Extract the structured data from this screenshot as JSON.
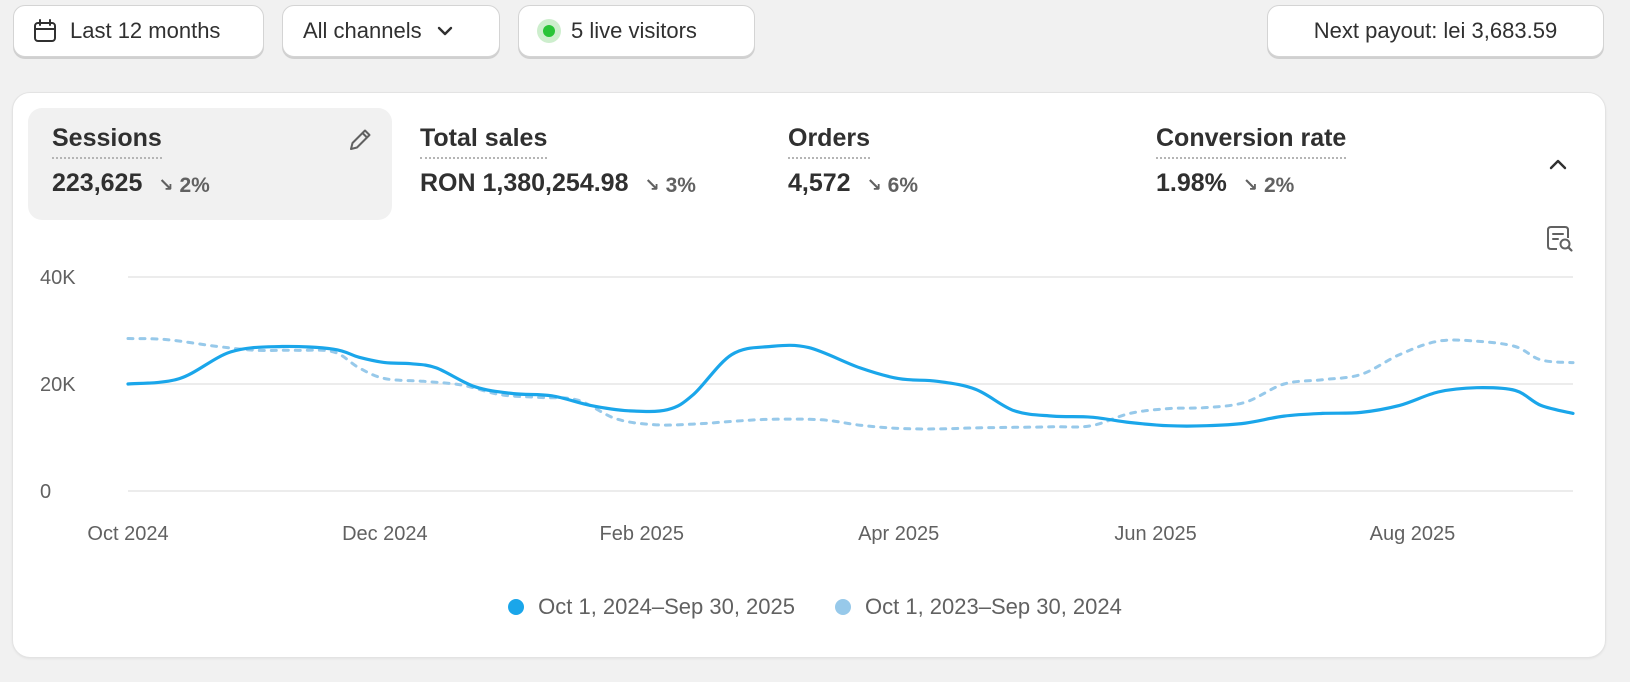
{
  "filters": {
    "date_range": "Last 12 months",
    "channels": "All channels",
    "live_visitors": "5 live visitors",
    "payout": "Next payout: lei 3,683.59"
  },
  "metrics": [
    {
      "title": "Sessions",
      "value": "223,625",
      "delta": "2%",
      "selected": true
    },
    {
      "title": "Total sales",
      "value": "RON 1,380,254.98",
      "delta": "3%"
    },
    {
      "title": "Orders",
      "value": "4,572",
      "delta": "6%"
    },
    {
      "title": "Conversion rate",
      "value": "1.98%",
      "delta": "2%"
    }
  ],
  "icons": {
    "calendar": "calendar-icon",
    "chevron": "chevron-down-icon",
    "edit": "pencil-icon",
    "collapse": "chevron-up-icon",
    "inspect": "chart-inspect-icon"
  },
  "colors": {
    "current": "#1aa6ea",
    "previous": "#97c9ea",
    "live": "#29c437"
  },
  "chart_data": {
    "type": "line",
    "y_ticks": [
      "0",
      "20K",
      "40K"
    ],
    "ylim": [
      0,
      40000
    ],
    "x_ticks": [
      "Oct 2024",
      "Dec 2024",
      "Feb 2025",
      "Apr 2025",
      "Jun 2025",
      "Aug 2025"
    ],
    "x_tick_months": [
      0,
      2,
      4,
      6,
      8,
      10
    ],
    "x_range_months": [
      0,
      11.25
    ],
    "grid": true,
    "legend": "bottom-center",
    "series": [
      {
        "name": "Oct 1, 2024–Sep 30, 2025",
        "style": "solid",
        "points": [
          [
            0,
            20000
          ],
          [
            0.4,
            21000
          ],
          [
            0.8,
            26000
          ],
          [
            1.2,
            27000
          ],
          [
            1.6,
            26500
          ],
          [
            1.8,
            25000
          ],
          [
            2.0,
            24000
          ],
          [
            2.2,
            23800
          ],
          [
            2.4,
            23000
          ],
          [
            2.7,
            19500
          ],
          [
            3.0,
            18200
          ],
          [
            3.3,
            17800
          ],
          [
            3.6,
            16000
          ],
          [
            3.9,
            15000
          ],
          [
            4.2,
            15200
          ],
          [
            4.4,
            18000
          ],
          [
            4.7,
            25500
          ],
          [
            5.0,
            27000
          ],
          [
            5.3,
            26800
          ],
          [
            5.7,
            23000
          ],
          [
            6.0,
            21000
          ],
          [
            6.3,
            20500
          ],
          [
            6.6,
            19000
          ],
          [
            6.9,
            15000
          ],
          [
            7.2,
            14000
          ],
          [
            7.5,
            13800
          ],
          [
            7.8,
            12800
          ],
          [
            8.1,
            12200
          ],
          [
            8.4,
            12200
          ],
          [
            8.7,
            12700
          ],
          [
            9.0,
            14000
          ],
          [
            9.3,
            14500
          ],
          [
            9.6,
            14700
          ],
          [
            9.9,
            16000
          ],
          [
            10.2,
            18500
          ],
          [
            10.5,
            19300
          ],
          [
            10.8,
            18800
          ],
          [
            11.0,
            16000
          ],
          [
            11.25,
            14500
          ]
        ]
      },
      {
        "name": "Oct 1, 2023–Sep 30, 2024",
        "style": "dashed",
        "points": [
          [
            0,
            28500
          ],
          [
            0.3,
            28300
          ],
          [
            0.7,
            27000
          ],
          [
            1.0,
            26300
          ],
          [
            1.3,
            26300
          ],
          [
            1.6,
            26000
          ],
          [
            1.8,
            23000
          ],
          [
            2.0,
            21000
          ],
          [
            2.3,
            20500
          ],
          [
            2.6,
            19800
          ],
          [
            2.9,
            18000
          ],
          [
            3.2,
            17500
          ],
          [
            3.5,
            17000
          ],
          [
            3.8,
            13500
          ],
          [
            4.1,
            12400
          ],
          [
            4.4,
            12500
          ],
          [
            4.7,
            13000
          ],
          [
            5.0,
            13400
          ],
          [
            5.4,
            13300
          ],
          [
            5.7,
            12300
          ],
          [
            6.0,
            11700
          ],
          [
            6.3,
            11600
          ],
          [
            6.6,
            11800
          ],
          [
            6.9,
            11900
          ],
          [
            7.2,
            12000
          ],
          [
            7.5,
            12200
          ],
          [
            7.8,
            14500
          ],
          [
            8.1,
            15400
          ],
          [
            8.4,
            15600
          ],
          [
            8.7,
            16600
          ],
          [
            9.0,
            20000
          ],
          [
            9.3,
            20800
          ],
          [
            9.6,
            21800
          ],
          [
            9.9,
            25500
          ],
          [
            10.2,
            28000
          ],
          [
            10.5,
            28000
          ],
          [
            10.8,
            27000
          ],
          [
            11.0,
            24500
          ],
          [
            11.25,
            24000
          ]
        ]
      }
    ]
  }
}
